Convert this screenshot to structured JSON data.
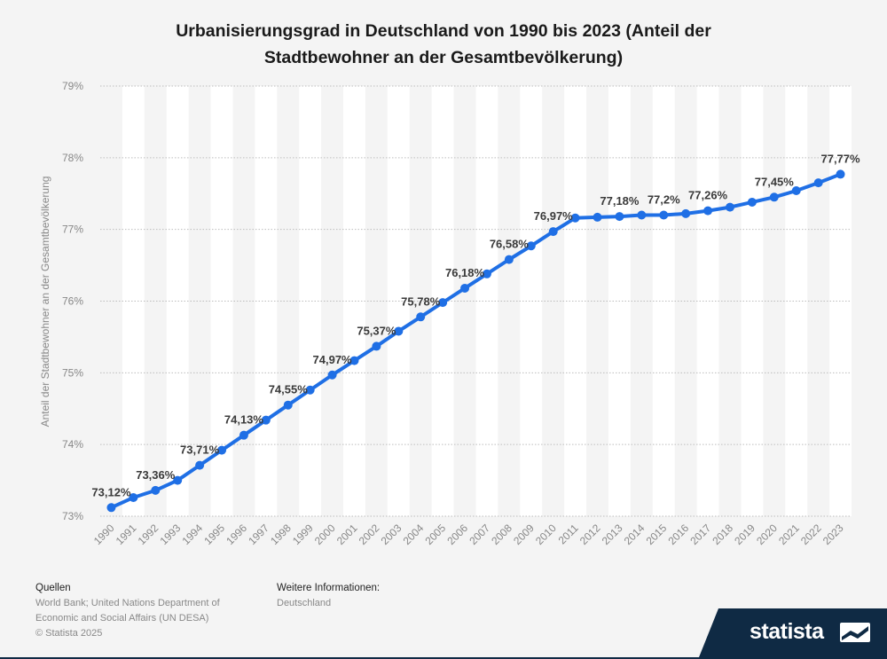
{
  "chart_data": {
    "type": "line",
    "title": "Urbanisierungsgrad in Deutschland von 1990 bis 2023 (Anteil der Stadtbewohner an der Gesamtbevölkerung)",
    "title_lines": [
      "Urbanisierungsgrad in Deutschland von 1990 bis 2023 (Anteil der",
      "Stadtbewohner an der Gesamtbevölkerung)"
    ],
    "xlabel": "",
    "ylabel": "Anteil der Stadtbewohner an der Gesamtbevölkerung",
    "ylim": [
      73,
      79
    ],
    "y_ticks": [
      "73%",
      "74%",
      "75%",
      "76%",
      "77%",
      "78%",
      "79%"
    ],
    "grid": true,
    "line_color": "#1f6fe5",
    "x": [
      "1990",
      "1991",
      "1992",
      "1993",
      "1994",
      "1995",
      "1996",
      "1997",
      "1998",
      "1999",
      "2000",
      "2001",
      "2002",
      "2003",
      "2004",
      "2005",
      "2006",
      "2007",
      "2008",
      "2009",
      "2010",
      "2011",
      "2012",
      "2013",
      "2014",
      "2015",
      "2016",
      "2017",
      "2018",
      "2019",
      "2020",
      "2021",
      "2022",
      "2023"
    ],
    "values": [
      73.12,
      73.26,
      73.36,
      73.5,
      73.71,
      73.92,
      74.13,
      74.34,
      74.55,
      74.76,
      74.97,
      75.17,
      75.37,
      75.58,
      75.78,
      75.98,
      76.18,
      76.38,
      76.58,
      76.77,
      76.97,
      77.16,
      77.17,
      77.18,
      77.2,
      77.2,
      77.22,
      77.26,
      77.31,
      77.38,
      77.45,
      77.54,
      77.65,
      77.77
    ],
    "data_labels": [
      {
        "index": 0,
        "text": "73,12%"
      },
      {
        "index": 2,
        "text": "73,36%"
      },
      {
        "index": 4,
        "text": "73,71%"
      },
      {
        "index": 6,
        "text": "74,13%"
      },
      {
        "index": 8,
        "text": "74,55%"
      },
      {
        "index": 10,
        "text": "74,97%"
      },
      {
        "index": 12,
        "text": "75,37%"
      },
      {
        "index": 14,
        "text": "75,78%"
      },
      {
        "index": 16,
        "text": "76,18%"
      },
      {
        "index": 18,
        "text": "76,58%"
      },
      {
        "index": 20,
        "text": "76,97%"
      },
      {
        "index": 23,
        "text": "77,18%"
      },
      {
        "index": 25,
        "text": "77,2%"
      },
      {
        "index": 27,
        "text": "77,26%"
      },
      {
        "index": 30,
        "text": "77,45%"
      },
      {
        "index": 33,
        "text": "77,77%"
      }
    ]
  },
  "footer": {
    "sources_heading": "Quellen",
    "sources_lines": [
      "World Bank; United Nations Department of",
      "Economic and Social Affairs (UN DESA)",
      "© Statista 2025"
    ],
    "info_heading": "Weitere Informationen:",
    "info_text": "Deutschland"
  },
  "brand": {
    "name": "statista",
    "icon": "statista-logo-icon",
    "color": "#0f2a44"
  }
}
